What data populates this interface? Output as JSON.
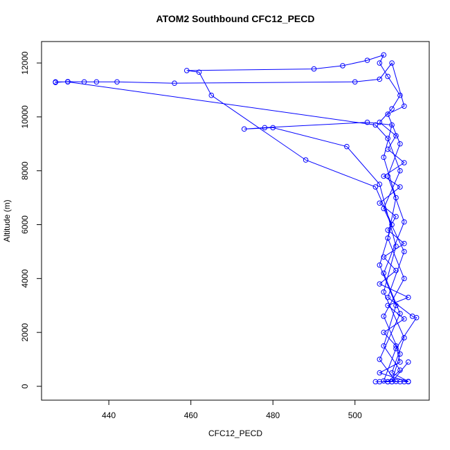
{
  "chart_data": {
    "type": "line",
    "title": "ATOM2 Southbound CFC12_PECD",
    "x_label": "CFC12_PECD",
    "y_label": "Altitude (m)",
    "series": [
      {
        "color": "#0000ff",
        "x": [
          505,
          508,
          510,
          512,
          513,
          506,
          511,
          510,
          507,
          512,
          508,
          513,
          506,
          510,
          507,
          512,
          508,
          510,
          506,
          511,
          507,
          512,
          508,
          510,
          506,
          509,
          511,
          508,
          506,
          507,
          503,
          497,
          490,
          459,
          462,
          465,
          488,
          505,
          509,
          506,
          510,
          507,
          511,
          508,
          506,
          509,
          511,
          507,
          512,
          508,
          510,
          507,
          509,
          503,
          478,
          473,
          480,
          498,
          506,
          510,
          507,
          512,
          509,
          513,
          510,
          506,
          511,
          507,
          512,
          508,
          511,
          508,
          512,
          509,
          506,
          500,
          456,
          442,
          437,
          434,
          430,
          427,
          427,
          430,
          505,
          508,
          511,
          507,
          512,
          508,
          514,
          515,
          510,
          507,
          511,
          509,
          513
        ],
        "values": [
          170,
          170,
          180,
          170,
          170,
          500,
          900,
          1500,
          2000,
          2500,
          3000,
          3300,
          3800,
          4300,
          4800,
          5300,
          5800,
          6300,
          6800,
          7400,
          7800,
          8300,
          8800,
          9300,
          9800,
          10300,
          10800,
          11500,
          12000,
          12300,
          12100,
          11900,
          11780,
          11720,
          11660,
          10800,
          8400,
          7400,
          6000,
          4500,
          3000,
          1500,
          600,
          170,
          170,
          170,
          1200,
          2600,
          4000,
          5500,
          7000,
          8500,
          9700,
          9800,
          9600,
          9550,
          9600,
          8900,
          7500,
          5200,
          3500,
          1800,
          500,
          180,
          180,
          1000,
          2700,
          4200,
          6100,
          7800,
          9000,
          10100,
          10400,
          12000,
          11400,
          11300,
          11250,
          11300,
          11300,
          11300,
          11310,
          11280,
          11300,
          11300,
          9700,
          9200,
          8000,
          6600,
          5000,
          3300,
          2600,
          2550,
          1400,
          200,
          170,
          170,
          900
        ]
      }
    ],
    "xlim": [
      423.6,
      518.1
    ],
    "ylim": [
      -514,
      12797
    ],
    "xticks": [
      440,
      460,
      480,
      500
    ],
    "yticks": [
      0,
      2000,
      4000,
      6000,
      8000,
      10000,
      12000
    ]
  }
}
